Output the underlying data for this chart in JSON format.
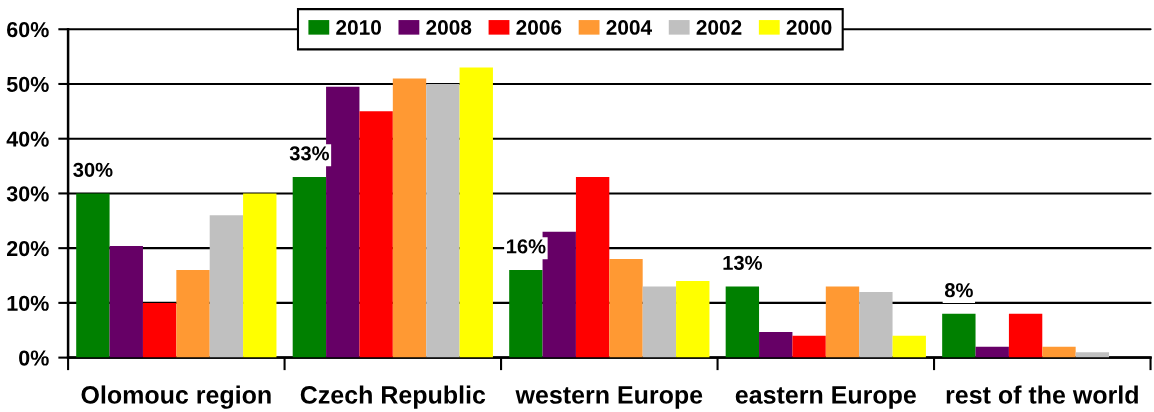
{
  "chart_data": {
    "type": "bar",
    "categories": [
      "Olomouc region",
      "Czech Republic",
      "western Europe",
      "eastern Europe",
      "rest of the world"
    ],
    "series": [
      {
        "name": "2010",
        "color": "#008000",
        "values": [
          30,
          33,
          16,
          13,
          8
        ],
        "value_labels": [
          "30%",
          "33%",
          "16%",
          "13%",
          "8%"
        ]
      },
      {
        "name": "2008",
        "color": "#660066",
        "values": [
          20.4,
          49.5,
          23,
          4.7,
          2
        ]
      },
      {
        "name": "2006",
        "color": "#ff0000",
        "values": [
          10,
          45,
          33,
          4,
          8
        ]
      },
      {
        "name": "2004",
        "color": "#ff9933",
        "values": [
          16,
          51,
          18,
          13,
          2
        ]
      },
      {
        "name": "2002",
        "color": "#c0c0c0",
        "values": [
          26,
          50,
          13,
          12,
          1
        ]
      },
      {
        "name": "2000",
        "color": "#ffff00",
        "values": [
          30,
          53,
          14,
          4,
          null
        ]
      }
    ],
    "ylim": [
      0,
      60
    ],
    "yticks": [
      {
        "value": 0,
        "label": "0%"
      },
      {
        "value": 10,
        "label": "10%"
      },
      {
        "value": 20,
        "label": "20%"
      },
      {
        "value": 30,
        "label": "30%"
      },
      {
        "value": 40,
        "label": "40%"
      },
      {
        "value": 50,
        "label": "50%"
      },
      {
        "value": 60,
        "label": "60%"
      }
    ],
    "grid": "y",
    "legend": "top"
  }
}
